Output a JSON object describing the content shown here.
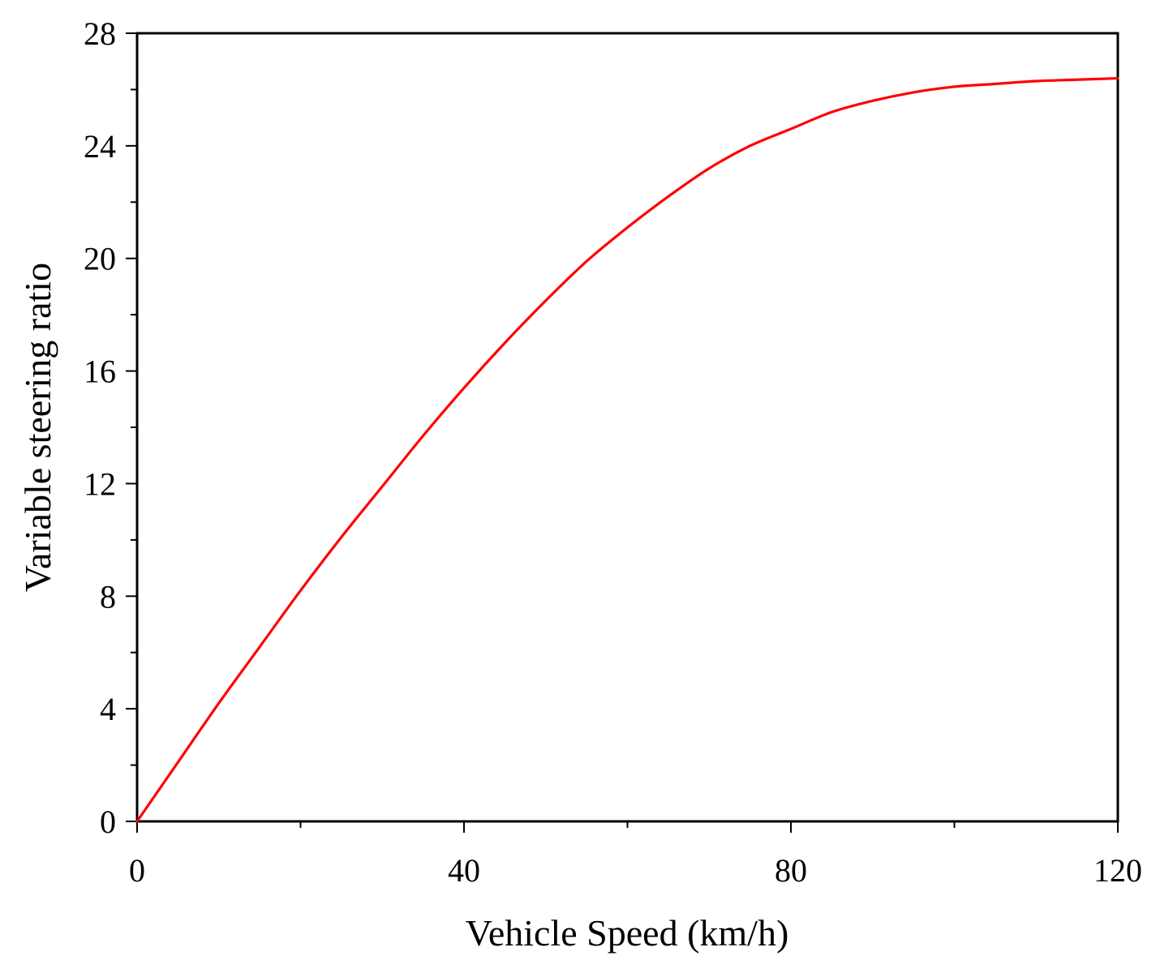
{
  "chart_data": {
    "type": "line",
    "title": "",
    "xlabel": "Vehicle Speed (km/h)",
    "ylabel": "Variable steering ratio",
    "xlim": [
      0,
      120
    ],
    "ylim": [
      0,
      28
    ],
    "x_major_ticks": [
      0,
      40,
      80,
      120
    ],
    "x_tick_labels": [
      "0",
      "40",
      "80",
      "120"
    ],
    "x_minor_ticks": [
      20,
      60,
      100
    ],
    "y_major_ticks": [
      0,
      4,
      8,
      12,
      16,
      20,
      24,
      28
    ],
    "y_tick_labels": [
      "0",
      "4",
      "8",
      "12",
      "16",
      "20",
      "24",
      "28"
    ],
    "y_minor_ticks": [
      2,
      6,
      10,
      14,
      18,
      22,
      26
    ],
    "grid": false,
    "legend": "none",
    "series": [
      {
        "color": "#ff0000",
        "x": [
          0,
          5,
          10,
          15,
          20,
          25,
          30,
          35,
          40,
          45,
          50,
          55,
          60,
          65,
          70,
          75,
          80,
          85,
          90,
          95,
          100,
          105,
          110,
          115,
          120
        ],
        "y": [
          0,
          2.1,
          4.2,
          6.2,
          8.2,
          10.1,
          11.9,
          13.7,
          15.4,
          17.0,
          18.5,
          19.9,
          21.1,
          22.2,
          23.2,
          24.0,
          24.6,
          25.2,
          25.6,
          25.9,
          26.1,
          26.2,
          26.3,
          26.35,
          26.4
        ]
      }
    ]
  }
}
